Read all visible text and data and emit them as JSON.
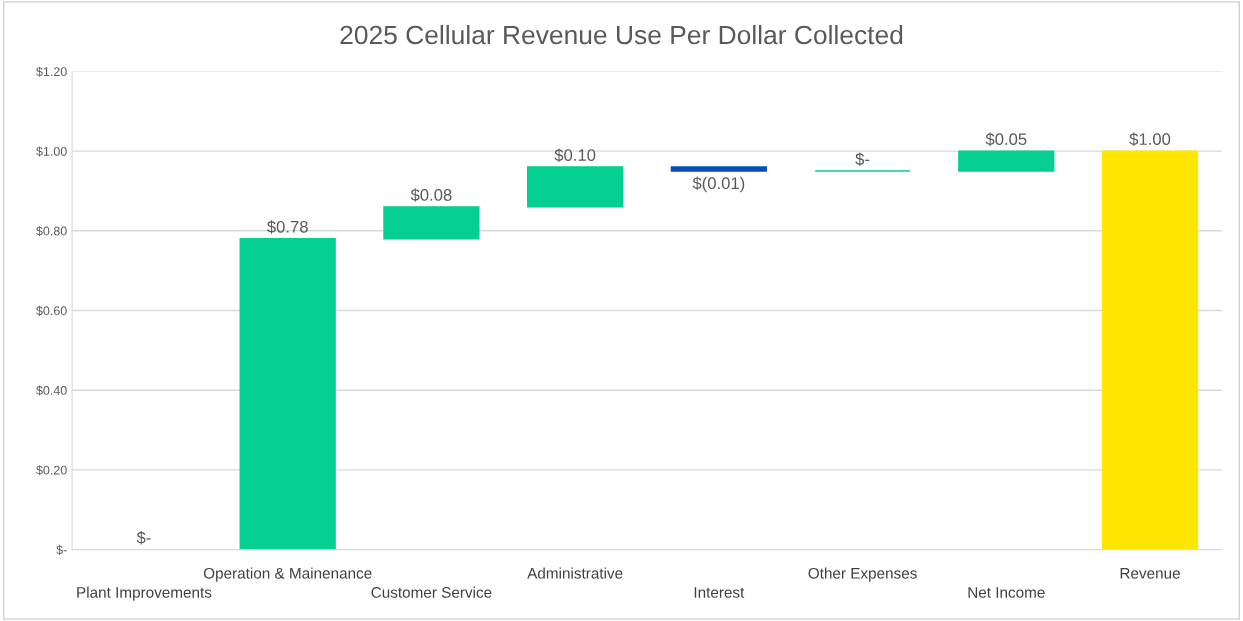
{
  "chart_data": {
    "type": "bar",
    "title": "2025 Cellular Revenue Use Per Dollar Collected",
    "categories": [
      "Plant Improvements",
      "Operation & Mainenance",
      "Customer Service",
      "Administrative",
      "Interest",
      "Other Expenses",
      "Net Income",
      "Revenue"
    ],
    "values": [
      0,
      0.78,
      0.08,
      0.1,
      -0.01,
      0,
      0.05,
      1.0
    ],
    "base": [
      0,
      0,
      0.78,
      0.86,
      0.96,
      0.95,
      0.95,
      0
    ],
    "colors": [
      "#05cf91",
      "#05cf91",
      "#05cf91",
      "#05cf91",
      "#0a4fb8",
      "#05cf91",
      "#05cf91",
      "#ffe600"
    ],
    "value_labels": [
      "$-",
      "$0.78",
      "$0.08",
      "$0.10",
      "$(0.01)",
      "$-",
      "$0.05",
      "$1.00"
    ],
    "ylim": [
      0,
      1.2
    ],
    "yticks": [
      {
        "value": 0,
        "label": "$-"
      },
      {
        "value": 0.2,
        "label": "$0.20"
      },
      {
        "value": 0.4,
        "label": "$0.40"
      },
      {
        "value": 0.6,
        "label": "$0.60"
      },
      {
        "value": 0.8,
        "label": "$0.80"
      },
      {
        "value": 1.0,
        "label": "$1.00"
      },
      {
        "value": 1.2,
        "label": "$1.20"
      }
    ],
    "grid": "y",
    "legend": false
  }
}
